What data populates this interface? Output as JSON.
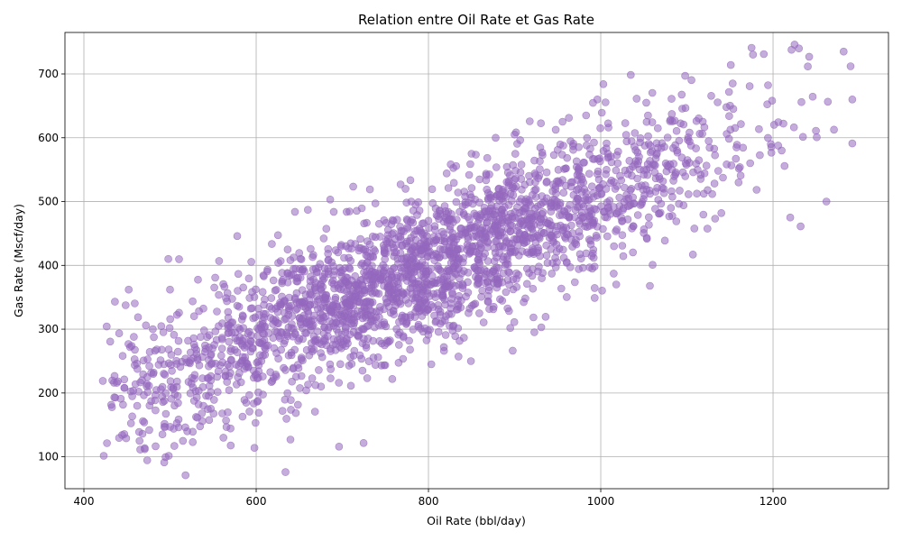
{
  "chart_data": {
    "type": "scatter",
    "title": "Relation entre Oil Rate et Gas Rate",
    "xlabel": "Oil Rate (bbl/day)",
    "ylabel": "Gas Rate (Mscf/day)",
    "xlim": [
      378,
      1334
    ],
    "ylim": [
      50,
      765
    ],
    "xticks": [
      400,
      600,
      800,
      1000,
      1200
    ],
    "yticks": [
      100,
      200,
      300,
      400,
      500,
      600,
      700
    ],
    "grid": true,
    "color": "#9467bd",
    "n_points": 2500,
    "trend": {
      "intercept": -50,
      "slope": 0.56,
      "noise_sd": 58
    },
    "x_range": [
      422,
      1292
    ],
    "points": [
      [
        422,
        219
      ],
      [
        436,
        343
      ],
      [
        447,
        208
      ],
      [
        452,
        362
      ],
      [
        458,
        288
      ],
      [
        468,
        136
      ],
      [
        470,
        154
      ],
      [
        472,
        306
      ],
      [
        476,
        242
      ],
      [
        480,
        300
      ],
      [
        498,
        410
      ],
      [
        500,
        362
      ],
      [
        505,
        117
      ],
      [
        515,
        125
      ],
      [
        518,
        71
      ],
      [
        520,
        140
      ],
      [
        557,
        407
      ],
      [
        562,
        130
      ],
      [
        578,
        446
      ],
      [
        598,
        114
      ],
      [
        634,
        76
      ],
      [
        645,
        484
      ],
      [
        660,
        487
      ],
      [
        690,
        484
      ],
      [
        705,
        484
      ],
      [
        732,
        519
      ],
      [
        780,
        500
      ],
      [
        800,
        470
      ],
      [
        818,
        266
      ],
      [
        850,
        575
      ],
      [
        878,
        600
      ],
      [
        900,
        605
      ],
      [
        931,
        303
      ],
      [
        983,
        635
      ],
      [
        993,
        349
      ],
      [
        996,
        660
      ],
      [
        1003,
        684
      ],
      [
        1018,
        370
      ],
      [
        1057,
        368
      ],
      [
        1098,
        697
      ],
      [
        1107,
        417
      ],
      [
        1140,
        482
      ],
      [
        1151,
        714
      ],
      [
        1175,
        741
      ],
      [
        1225,
        746
      ],
      [
        1230,
        740
      ],
      [
        1242,
        727
      ],
      [
        1282,
        735
      ],
      [
        1290,
        712
      ],
      [
        1292,
        591
      ],
      [
        1292,
        660
      ],
      [
        1262,
        500
      ],
      [
        1220,
        475
      ],
      [
        1160,
        530
      ],
      [
        1210,
        580
      ]
    ]
  }
}
